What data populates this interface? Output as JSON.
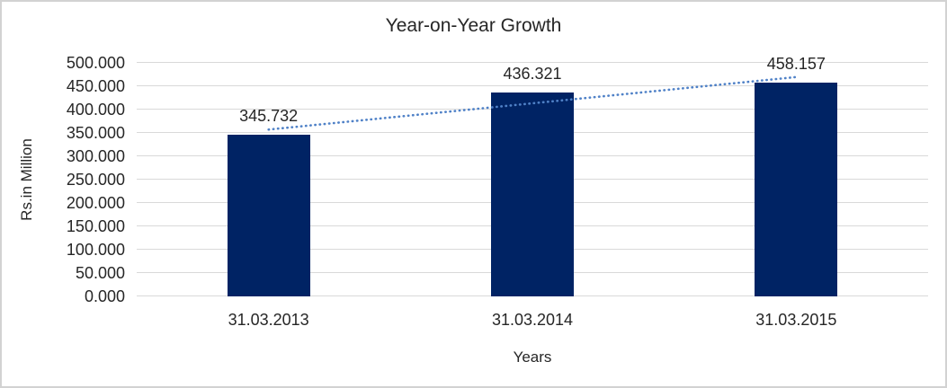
{
  "chart_data": {
    "type": "bar",
    "title": "Year-on-Year Growth",
    "xlabel": "Years",
    "ylabel": "Rs.in Million",
    "categories": [
      "31.03.2013",
      "31.03.2014",
      "31.03.2015"
    ],
    "values": [
      345.732,
      436.321,
      458.157
    ],
    "data_labels": [
      "345.732",
      "436.321",
      "458.157"
    ],
    "ylim": [
      0,
      500
    ],
    "y_tick_step": 50,
    "y_tick_labels": [
      "0.000",
      "50.000",
      "100.000",
      "150.000",
      "200.000",
      "250.000",
      "300.000",
      "350.000",
      "400.000",
      "450.000",
      "500.000"
    ],
    "grid": "horizontal",
    "legend": "none",
    "trendline": {
      "type": "linear",
      "style": "dotted"
    },
    "colors": {
      "bar": "#002364",
      "trendline": "#4F81C7",
      "gridline": "#D9D9D9",
      "text": "#262626",
      "border": "#D2D2D2",
      "background": "#FFFFFF"
    }
  }
}
